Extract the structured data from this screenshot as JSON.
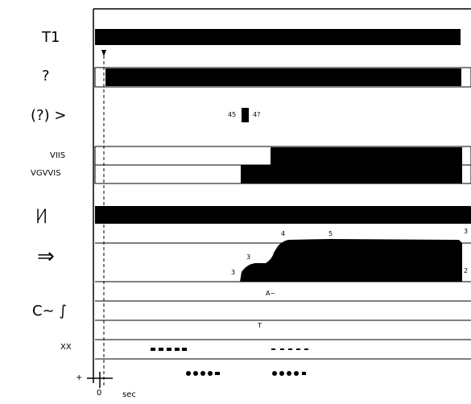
{
  "rows": [
    {
      "id": "row1",
      "label": "T1"
    },
    {
      "id": "row2",
      "label": "?"
    },
    {
      "id": "row3",
      "label": "(?) >"
    },
    {
      "id": "row4a",
      "label": "VIIS"
    },
    {
      "id": "row4b",
      "label": "VGVVIS"
    },
    {
      "id": "row5",
      "label": "|⁄|"
    },
    {
      "id": "row6",
      "label": "⇒"
    },
    {
      "id": "row7",
      "label": "C~ ∫"
    },
    {
      "id": "row8",
      "label": "XX"
    },
    {
      "id": "row9",
      "label": "+"
    }
  ],
  "annotations": {
    "pulse_left": "45",
    "pulse_right": "4?",
    "row7_mid": "A~",
    "row7_lower": "T",
    "curve_a": "3",
    "curve_b": "3",
    "curve_c": "4",
    "curve_d": "5",
    "curve_e": "3",
    "curve_f": "2",
    "axis_origin": "0",
    "axis_unit": "sec"
  },
  "colors": {
    "ink": "#000000",
    "paper": "#ffffff"
  }
}
